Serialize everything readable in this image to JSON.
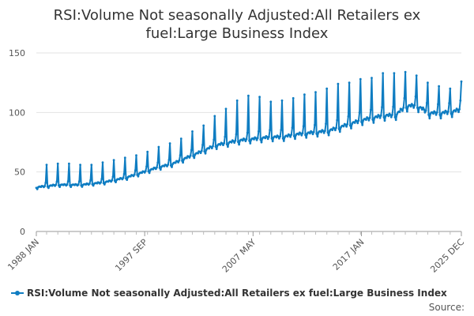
{
  "chart_data": {
    "type": "line",
    "title": "RSI:Volume Not seasonally Adjusted:All Retailers ex fuel:Large Business Index",
    "xlabel": "",
    "ylabel": "",
    "ylim": [
      0,
      150
    ],
    "yticks": [
      0,
      50,
      100,
      150
    ],
    "xlim": [
      "1988-01",
      "2025-12"
    ],
    "xtick_labels": [
      "1988 JAN",
      "1997 SEP",
      "2007 MAY",
      "2017 JAN",
      "2025 DEC"
    ],
    "grid": true,
    "legend_position": "bottom-left",
    "series": [
      {
        "name": "RSI:Volume Not seasonally Adjusted:All Retailers ex fuel:Large Business Index",
        "color": "#0f7dc2",
        "frequency": "monthly",
        "x": [
          "1988-01",
          "1989-01",
          "1990-01",
          "1991-01",
          "1992-01",
          "1993-01",
          "1994-01",
          "1995-01",
          "1996-01",
          "1997-01",
          "1998-01",
          "1999-01",
          "2000-01",
          "2001-01",
          "2002-01",
          "2003-01",
          "2004-01",
          "2005-01",
          "2006-01",
          "2007-01",
          "2008-01",
          "2009-01",
          "2010-01",
          "2011-01",
          "2012-01",
          "2013-01",
          "2014-01",
          "2015-01",
          "2016-01",
          "2017-01",
          "2018-01",
          "2019-01",
          "2020-01",
          "2021-01",
          "2022-01",
          "2023-01",
          "2024-01",
          "2025-01",
          "2025-12"
        ],
        "y_base": [
          37,
          38,
          39,
          39,
          39,
          40,
          41,
          43,
          45,
          48,
          51,
          54,
          56,
          60,
          64,
          68,
          72,
          74,
          76,
          77,
          78,
          79,
          79,
          81,
          82,
          83,
          84,
          87,
          90,
          93,
          95,
          97,
          97,
          105,
          105,
          99,
          99,
          100,
          102
        ],
        "y_december_peak": [
          56,
          57,
          57,
          56,
          56,
          58,
          60,
          62,
          64,
          67,
          71,
          74,
          78,
          84,
          89,
          97,
          103,
          110,
          114,
          113,
          109,
          110,
          112,
          115,
          117,
          120,
          124,
          125,
          128,
          129,
          133,
          133,
          134,
          131,
          125,
          122,
          120,
          126,
          126
        ]
      }
    ]
  },
  "legend": {
    "label": "RSI:Volume Not seasonally Adjusted:All Retailers ex fuel:Large Business Index"
  },
  "source": {
    "label": "Source:"
  }
}
